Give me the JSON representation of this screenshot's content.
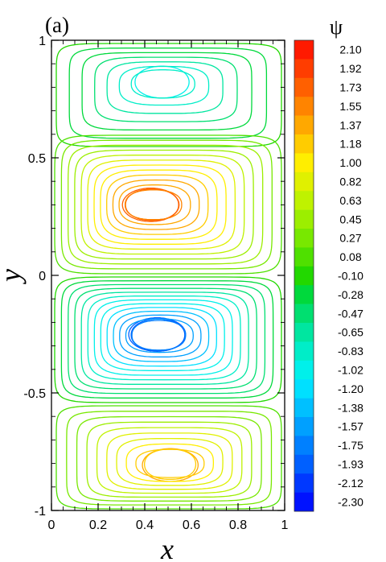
{
  "chart_data": {
    "type": "contour",
    "panel_label": "(a)",
    "xlabel": "x",
    "ylabel": "y",
    "xlim": [
      0,
      1
    ],
    "ylim": [
      -1,
      1
    ],
    "xticks": [
      "0",
      "0.2",
      "0.4",
      "0.6",
      "0.8",
      "1"
    ],
    "yticks": [
      "1",
      "0.5",
      "0",
      "-0.5",
      "-1"
    ],
    "colorbar_title": "ψ",
    "colorbar_levels": [
      "2.10",
      "1.92",
      "1.73",
      "1.55",
      "1.37",
      "1.18",
      "1.00",
      "0.82",
      "0.63",
      "0.45",
      "0.27",
      "0.08",
      "-0.10",
      "-0.28",
      "-0.47",
      "-0.65",
      "-0.83",
      "-1.02",
      "-1.20",
      "-1.38",
      "-1.57",
      "-1.75",
      "-1.93",
      "-2.12",
      "-2.30"
    ],
    "colorbar_colors": [
      "#ff1a00",
      "#ff3d00",
      "#ff6000",
      "#ff8400",
      "#ffa800",
      "#ffcc00",
      "#ffee00",
      "#e0f000",
      "#bff200",
      "#9cee00",
      "#78e800",
      "#4fe000",
      "#22d800",
      "#00d93c",
      "#00df70",
      "#00e6a0",
      "#00edc8",
      "#00f0ea",
      "#00e0ff",
      "#00c0ff",
      "#00a0ff",
      "#0080ff",
      "#0060ff",
      "#0038ff",
      "#0012ff"
    ],
    "cells": [
      {
        "center": [
          0.47,
          0.83
        ],
        "psi_peak": -1.2,
        "level_count": 8
      },
      {
        "center": [
          0.42,
          0.3
        ],
        "psi_peak": 1.95,
        "level_count": 14
      },
      {
        "center": [
          0.45,
          -0.25
        ],
        "psi_peak": -2.15,
        "level_count": 15
      },
      {
        "center": [
          0.51,
          -0.81
        ],
        "psi_peak": 1.5,
        "level_count": 11
      }
    ]
  }
}
